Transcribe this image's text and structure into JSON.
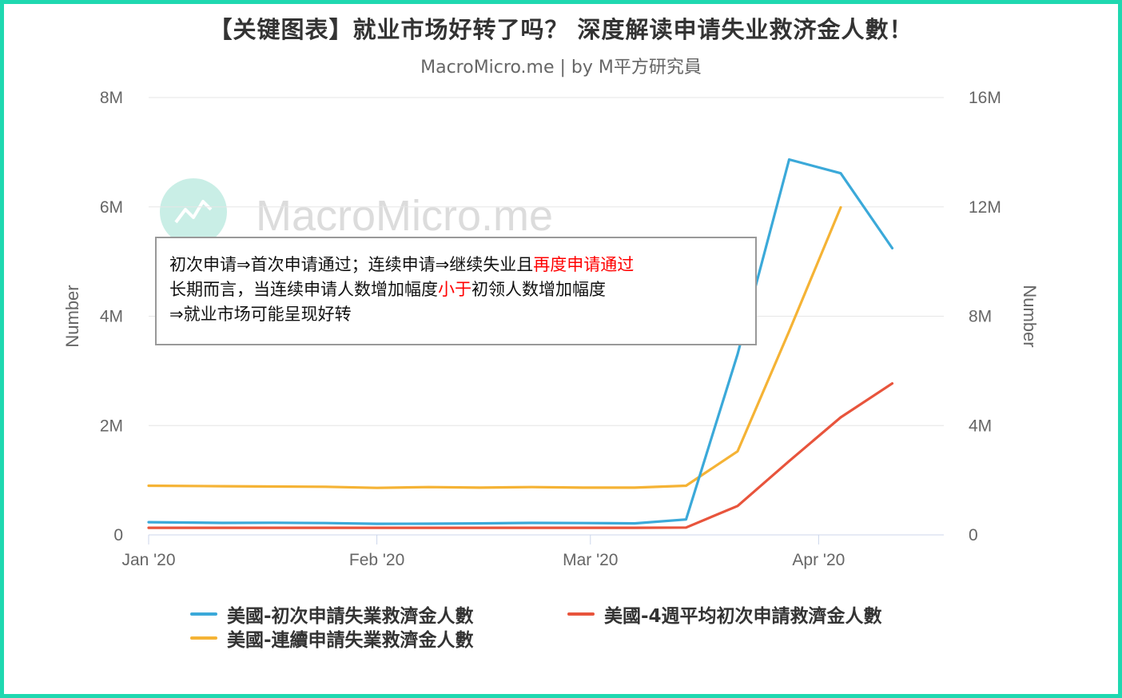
{
  "title": "【关键图表】就业市场好转了吗？ 深度解读申请失业救济金人數！",
  "subtitle": "MacroMicro.me | by M平方研究員",
  "watermark": "MacroMicro.me",
  "annotation": {
    "line1_part1": "初次申请⇒首次申请通过；连续申请⇒继续失业且",
    "line1_highlight": "再度申请通过",
    "line2_part1": "长期而言，当连续申请人数增加幅度",
    "line2_highlight": "小于",
    "line2_part2": "初领人数增加幅度",
    "line3": "⇒就业市场可能呈现好转",
    "highlight_color": "#ff0000"
  },
  "chart_data": {
    "type": "line",
    "x_axis": {
      "type": "date",
      "range": [
        "2020-01-01",
        "2020-04-18"
      ],
      "ticks": [
        {
          "date": "2020-01-01",
          "label": "Jan '20"
        },
        {
          "date": "2020-02-01",
          "label": "Feb '20"
        },
        {
          "date": "2020-03-01",
          "label": "Mar '20"
        },
        {
          "date": "2020-04-01",
          "label": "Apr '20"
        }
      ]
    },
    "y_axis_left": {
      "title": "Number",
      "min": 0,
      "max": 8000000,
      "ticks": [
        {
          "value": 0,
          "label": "0"
        },
        {
          "value": 2000000,
          "label": "2M"
        },
        {
          "value": 4000000,
          "label": "4M"
        },
        {
          "value": 6000000,
          "label": "6M"
        },
        {
          "value": 8000000,
          "label": "8M"
        }
      ]
    },
    "y_axis_right": {
      "title": "Number",
      "min": 0,
      "max": 16000000,
      "ticks": [
        {
          "value": 0,
          "label": "0"
        },
        {
          "value": 4000000,
          "label": "4M"
        },
        {
          "value": 8000000,
          "label": "8M"
        },
        {
          "value": 12000000,
          "label": "12M"
        },
        {
          "value": 16000000,
          "label": "16M"
        }
      ]
    },
    "grid": true,
    "legend_position": "bottom",
    "series": [
      {
        "name": "美國-初次申請失業救濟金人數",
        "color": "#3ba9d9",
        "axis": "left",
        "points": [
          [
            "2020-01-01",
            232000
          ],
          [
            "2020-01-11",
            220000
          ],
          [
            "2020-01-18",
            223000
          ],
          [
            "2020-01-25",
            216000
          ],
          [
            "2020-02-01",
            203000
          ],
          [
            "2020-02-08",
            205000
          ],
          [
            "2020-02-15",
            211000
          ],
          [
            "2020-02-22",
            219000
          ],
          [
            "2020-02-29",
            217000
          ],
          [
            "2020-03-07",
            211000
          ],
          [
            "2020-03-14",
            282000
          ],
          [
            "2020-03-21",
            3307000
          ],
          [
            "2020-03-28",
            6867000
          ],
          [
            "2020-04-04",
            6615000
          ],
          [
            "2020-04-11",
            5245000
          ]
        ]
      },
      {
        "name": "美國-4週平均初次申請救濟金人數",
        "color": "#e8543c",
        "axis": "left",
        "points": [
          [
            "2020-01-01",
            130000
          ],
          [
            "2020-01-11",
            130000
          ],
          [
            "2020-01-18",
            130000
          ],
          [
            "2020-01-25",
            130000
          ],
          [
            "2020-02-01",
            130000
          ],
          [
            "2020-02-08",
            130000
          ],
          [
            "2020-02-15",
            130000
          ],
          [
            "2020-02-22",
            130000
          ],
          [
            "2020-02-29",
            130000
          ],
          [
            "2020-03-07",
            130000
          ],
          [
            "2020-03-14",
            135000
          ],
          [
            "2020-03-21",
            530000
          ],
          [
            "2020-03-28",
            1350000
          ],
          [
            "2020-04-04",
            2150000
          ],
          [
            "2020-04-11",
            2770000
          ]
        ]
      },
      {
        "name": "美國-連續申請失業救濟金人數",
        "color": "#f5b335",
        "axis": "right",
        "points": [
          [
            "2020-01-01",
            1800000
          ],
          [
            "2020-01-11",
            1780000
          ],
          [
            "2020-01-18",
            1770000
          ],
          [
            "2020-01-25",
            1760000
          ],
          [
            "2020-02-01",
            1720000
          ],
          [
            "2020-02-08",
            1750000
          ],
          [
            "2020-02-15",
            1730000
          ],
          [
            "2020-02-22",
            1750000
          ],
          [
            "2020-02-29",
            1730000
          ],
          [
            "2020-03-07",
            1730000
          ],
          [
            "2020-03-14",
            1800000
          ],
          [
            "2020-03-21",
            3060000
          ],
          [
            "2020-03-28",
            7450000
          ],
          [
            "2020-04-04",
            11980000
          ]
        ]
      }
    ]
  }
}
